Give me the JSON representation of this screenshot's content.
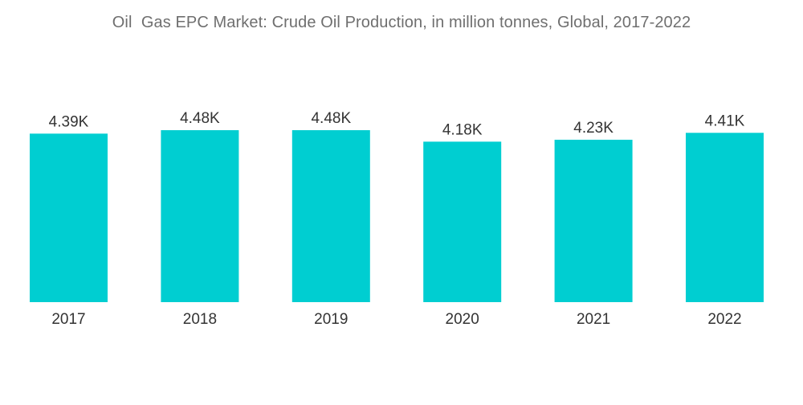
{
  "chart_data": {
    "type": "bar",
    "title": "Oil  Gas EPC Market: Crude Oil Production, in million tonnes, Global, 2017-2022",
    "xlabel": "",
    "ylabel": "",
    "categories": [
      "2017",
      "2018",
      "2019",
      "2020",
      "2021",
      "2022"
    ],
    "values": [
      4390,
      4480,
      4480,
      4180,
      4230,
      4410
    ],
    "value_labels": [
      "4.39K",
      "4.48K",
      "4.48K",
      "4.18K",
      "4.23K",
      "4.41K"
    ],
    "ylim": [
      0,
      4480
    ],
    "grid": false,
    "legend": "none",
    "colors": {
      "bar": "#00ced1",
      "text": "#333333",
      "title": "#6f6f6f"
    }
  }
}
